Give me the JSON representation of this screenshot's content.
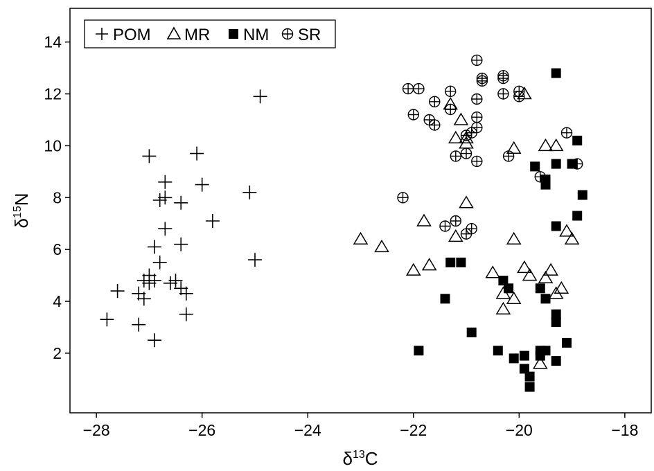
{
  "chart_data": {
    "type": "scatter",
    "xlabel": {
      "main": "δ",
      "sup": "13",
      "tail": "C"
    },
    "ylabel": {
      "main": "δ",
      "sup": "15",
      "tail": "N"
    },
    "xlim": [
      -28.5,
      -17.5
    ],
    "ylim": [
      -0.3,
      15.3
    ],
    "xticks": [
      -28,
      -26,
      -24,
      -22,
      -20,
      -18
    ],
    "xtick_labels": [
      "−28",
      "−26",
      "−24",
      "−22",
      "−20",
      "−18"
    ],
    "yticks": [
      2,
      4,
      6,
      8,
      10,
      12,
      14
    ],
    "ytick_labels": [
      "2",
      "4",
      "6",
      "8",
      "10",
      "12",
      "14"
    ],
    "grid": false,
    "legend": "top-left",
    "series": [
      {
        "name": "POM",
        "marker": "plus",
        "points": [
          [
            -27.8,
            3.3
          ],
          [
            -27.6,
            4.4
          ],
          [
            -27.0,
            9.6
          ],
          [
            -27.1,
            4.8
          ],
          [
            -27.1,
            4.1
          ],
          [
            -27.2,
            4.3
          ],
          [
            -27.0,
            5.0
          ],
          [
            -26.9,
            6.1
          ],
          [
            -26.9,
            4.8
          ],
          [
            -26.8,
            5.5
          ],
          [
            -27.2,
            3.1
          ],
          [
            -26.9,
            2.5
          ],
          [
            -26.7,
            8.6
          ],
          [
            -26.7,
            8.0
          ],
          [
            -26.8,
            7.9
          ],
          [
            -26.7,
            6.8
          ],
          [
            -26.4,
            7.8
          ],
          [
            -26.4,
            6.2
          ],
          [
            -26.5,
            4.8
          ],
          [
            -26.4,
            4.5
          ],
          [
            -26.3,
            4.3
          ],
          [
            -26.3,
            3.5
          ],
          [
            -26.1,
            9.7
          ],
          [
            -26.0,
            8.5
          ],
          [
            -25.8,
            7.1
          ],
          [
            -25.1,
            8.2
          ],
          [
            -25.0,
            5.6
          ],
          [
            -24.9,
            11.9
          ],
          [
            -27.0,
            4.7
          ],
          [
            -26.6,
            4.7
          ]
        ]
      },
      {
        "name": "MR",
        "marker": "triangle",
        "points": [
          [
            -23.0,
            6.4
          ],
          [
            -22.6,
            6.1
          ],
          [
            -22.0,
            5.2
          ],
          [
            -21.8,
            7.1
          ],
          [
            -21.7,
            5.4
          ],
          [
            -21.3,
            11.6
          ],
          [
            -21.2,
            10.3
          ],
          [
            -21.1,
            11.0
          ],
          [
            -21.0,
            10.3
          ],
          [
            -21.0,
            7.8
          ],
          [
            -21.0,
            10.1
          ],
          [
            -21.2,
            6.5
          ],
          [
            -20.5,
            5.1
          ],
          [
            -20.3,
            3.7
          ],
          [
            -20.3,
            4.3
          ],
          [
            -20.1,
            4.1
          ],
          [
            -20.1,
            6.4
          ],
          [
            -20.1,
            9.9
          ],
          [
            -19.9,
            5.3
          ],
          [
            -19.8,
            5.0
          ],
          [
            -19.9,
            12.0
          ],
          [
            -19.6,
            1.6
          ],
          [
            -19.5,
            4.9
          ],
          [
            -19.5,
            10.0
          ],
          [
            -19.4,
            5.2
          ],
          [
            -19.3,
            10.0
          ],
          [
            -19.2,
            4.5
          ],
          [
            -19.1,
            6.7
          ],
          [
            -19.3,
            4.3
          ],
          [
            -19.0,
            6.4
          ]
        ]
      },
      {
        "name": "NM",
        "marker": "square",
        "points": [
          [
            -21.9,
            2.1
          ],
          [
            -21.4,
            4.1
          ],
          [
            -21.3,
            5.5
          ],
          [
            -21.1,
            5.5
          ],
          [
            -20.9,
            2.8
          ],
          [
            -20.4,
            2.1
          ],
          [
            -20.3,
            4.8
          ],
          [
            -20.2,
            4.5
          ],
          [
            -20.1,
            1.8
          ],
          [
            -19.9,
            1.4
          ],
          [
            -19.9,
            1.9
          ],
          [
            -19.8,
            0.7
          ],
          [
            -19.8,
            1.1
          ],
          [
            -19.7,
            9.2
          ],
          [
            -19.6,
            1.9
          ],
          [
            -19.6,
            2.1
          ],
          [
            -19.5,
            2.1
          ],
          [
            -19.6,
            4.5
          ],
          [
            -19.5,
            4.1
          ],
          [
            -19.5,
            8.5
          ],
          [
            -19.5,
            8.7
          ],
          [
            -19.3,
            12.8
          ],
          [
            -19.3,
            9.3
          ],
          [
            -19.3,
            6.9
          ],
          [
            -19.3,
            3.2
          ],
          [
            -19.3,
            3.5
          ],
          [
            -19.1,
            2.4
          ],
          [
            -19.0,
            9.3
          ],
          [
            -18.9,
            10.2
          ],
          [
            -18.9,
            7.3
          ],
          [
            -18.8,
            8.1
          ],
          [
            -19.3,
            1.7
          ]
        ]
      },
      {
        "name": "SR",
        "marker": "circle-plus",
        "points": [
          [
            -22.2,
            8.0
          ],
          [
            -22.1,
            12.2
          ],
          [
            -22.0,
            11.2
          ],
          [
            -21.9,
            12.2
          ],
          [
            -21.7,
            11.0
          ],
          [
            -21.6,
            10.8
          ],
          [
            -21.6,
            11.7
          ],
          [
            -21.4,
            6.9
          ],
          [
            -21.3,
            12.1
          ],
          [
            -21.3,
            11.4
          ],
          [
            -21.2,
            7.1
          ],
          [
            -21.2,
            9.6
          ],
          [
            -21.0,
            9.7
          ],
          [
            -21.0,
            6.6
          ],
          [
            -21.0,
            10.4
          ],
          [
            -20.9,
            6.8
          ],
          [
            -20.9,
            10.5
          ],
          [
            -20.8,
            13.3
          ],
          [
            -20.8,
            11.8
          ],
          [
            -20.8,
            11.1
          ],
          [
            -20.8,
            10.7
          ],
          [
            -20.8,
            9.4
          ],
          [
            -20.7,
            12.5
          ],
          [
            -20.7,
            12.6
          ],
          [
            -20.3,
            12.6
          ],
          [
            -20.3,
            12.7
          ],
          [
            -20.3,
            12.0
          ],
          [
            -20.2,
            9.6
          ],
          [
            -20.0,
            12.1
          ],
          [
            -20.0,
            11.9
          ],
          [
            -19.6,
            8.8
          ],
          [
            -19.1,
            10.5
          ],
          [
            -18.9,
            9.3
          ]
        ]
      }
    ]
  }
}
